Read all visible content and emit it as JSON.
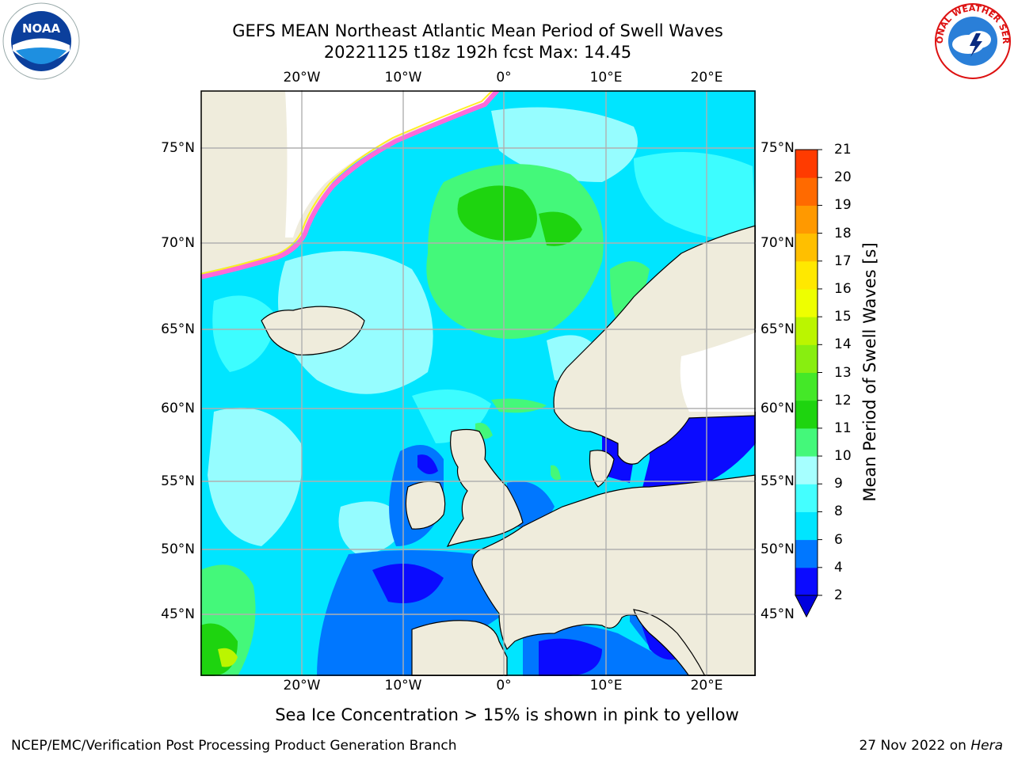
{
  "header": {
    "title_line1": "GEFS MEAN Northeast Atlantic Mean Period of Swell Waves",
    "title_line2": "20221125 t18z 192h fcst   Max: 14.45"
  },
  "map": {
    "region": "Northeast Atlantic",
    "lon_labels": [
      "20°W",
      "10°W",
      "0°",
      "10°E",
      "20°E"
    ],
    "lat_labels": [
      "75°N",
      "70°N",
      "65°N",
      "60°N",
      "55°N",
      "50°N",
      "45°N"
    ],
    "colors": {
      "land": "#efecdc",
      "ice_free_white": "#ffffff",
      "grid": "#b0b0b0",
      "coast": "#000000",
      "ice_pink": "#ff69d9",
      "ice_yellow": "#ffee22"
    }
  },
  "colorbar": {
    "label": "Mean Period of Swell Waves [s]",
    "ticks": [
      "2",
      "4",
      "6",
      "8",
      "9",
      "10",
      "11",
      "12",
      "13",
      "14",
      "15",
      "16",
      "17",
      "18",
      "19",
      "20",
      "21"
    ],
    "colors": [
      "#0b0bff",
      "#0077ff",
      "#00e5ff",
      "#44ffff",
      "#a6ffff",
      "#44f87a",
      "#1ed40f",
      "#44e828",
      "#88ee10",
      "#bbf500",
      "#eeff00",
      "#ffe800",
      "#ffbf00",
      "#ff9900",
      "#ff6a00",
      "#ff3b00",
      "#ff0000"
    ],
    "under_color": "#0000dd"
  },
  "footer": {
    "note": "Sea Ice Concentration > 15% is shown in pink to yellow",
    "credit": "NCEP/EMC/Verification Post Processing Product Generation Branch",
    "date": "27 Nov 2022 on",
    "machine": "Hera"
  },
  "logos": {
    "left_icon": "noaa-logo",
    "left_text": "NOAA",
    "right_icon": "national-weather-service-logo",
    "right_text": "NATIONAL WEATHER SERVICE"
  }
}
